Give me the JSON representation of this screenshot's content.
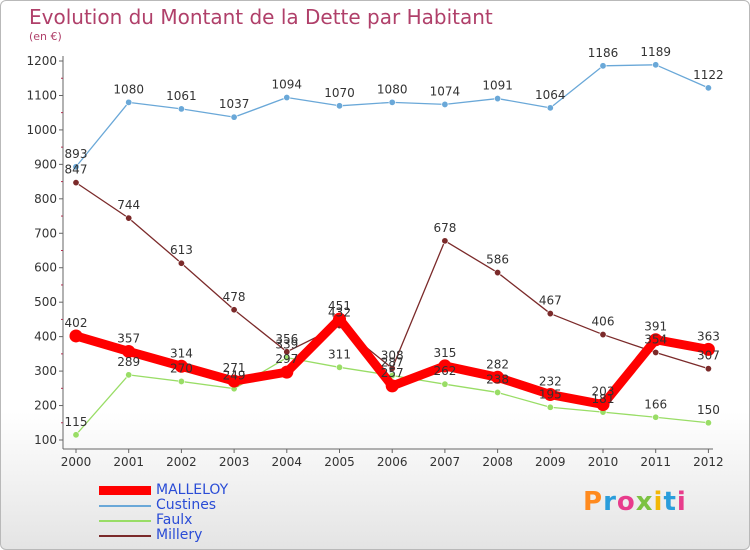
{
  "header": {
    "title": "Evolution du Montant de la Dette par Habitant",
    "unit": "(en €)"
  },
  "logo": {
    "text": "Proxiti",
    "colors": [
      "#ff8a1e",
      "#2a9ddb",
      "#e83c8c",
      "#7cc242",
      "#f2b705",
      "#2a9ddb",
      "#e83c8c"
    ]
  },
  "chart_data": {
    "type": "line",
    "title": "Evolution du Montant de la Dette par Habitant",
    "ylabel": "(en €)",
    "xlabel": "",
    "ylim": [
      100,
      1200
    ],
    "yticks": [
      100,
      200,
      300,
      400,
      500,
      600,
      700,
      800,
      900,
      1000,
      1100,
      1200
    ],
    "grid": false,
    "legend_position": "bottom-left",
    "categories": [
      "2000",
      "2001",
      "2002",
      "2003",
      "2004",
      "2005",
      "2006",
      "2007",
      "2008",
      "2009",
      "2010",
      "2011",
      "2012"
    ],
    "series": [
      {
        "name": "MALLELOY",
        "color": "#ff0000",
        "values": [
          402,
          357,
          314,
          271,
          297,
          451,
          257,
          315,
          282,
          232,
          203,
          391,
          363
        ],
        "labels": [
          "402",
          "357",
          "314",
          "271",
          "297",
          "451",
          "257",
          "315",
          "282",
          "232",
          "203",
          "391",
          "363"
        ]
      },
      {
        "name": "Custines",
        "color": "#6aa8d8",
        "values": [
          893,
          1080,
          1061,
          1037,
          1094,
          1070,
          1080,
          1074,
          1091,
          1064,
          1186,
          1189,
          1122
        ],
        "labels": [
          "893",
          "1080",
          "1061",
          "1037",
          "1094",
          "1070",
          "1080",
          "1074",
          "1091",
          "1064",
          "1186",
          "1189",
          "1122"
        ]
      },
      {
        "name": "Faulx",
        "color": "#99dd66",
        "values": [
          115,
          289,
          270,
          249,
          339,
          311,
          287,
          262,
          238,
          195,
          181,
          166,
          150
        ],
        "labels": [
          "115",
          "289",
          "270",
          "249",
          "339",
          "311",
          "287",
          "262",
          "238",
          "195",
          "181",
          "166",
          "150"
        ]
      },
      {
        "name": "Millery",
        "color": "#7b2a2a",
        "values": [
          847,
          744,
          613,
          478,
          356,
          432,
          308,
          678,
          586,
          467,
          406,
          354,
          307
        ],
        "labels": [
          "847",
          "744",
          "613",
          "478",
          "356",
          "432",
          "308",
          "678",
          "586",
          "467",
          "406",
          "354",
          "307"
        ]
      }
    ]
  }
}
